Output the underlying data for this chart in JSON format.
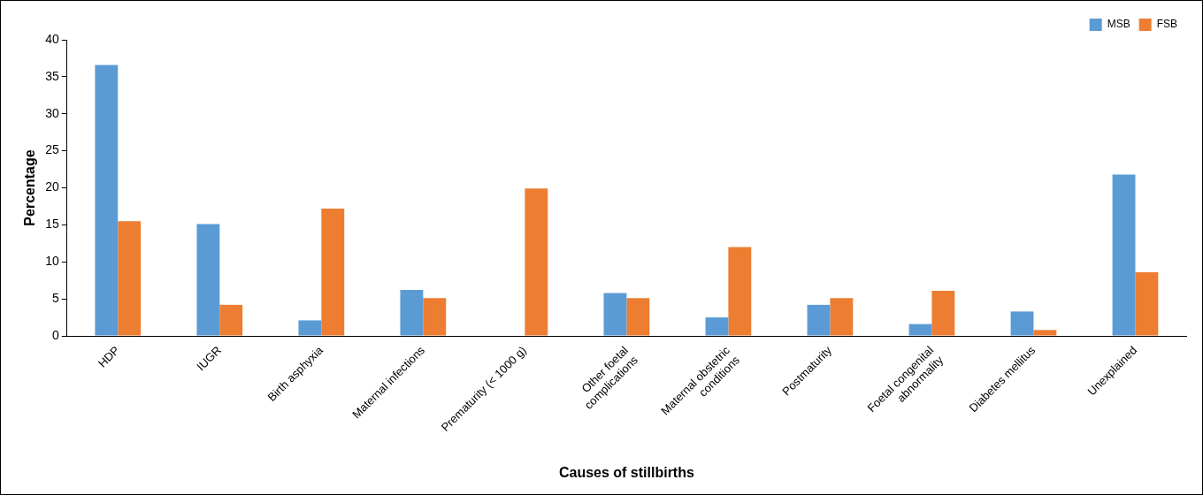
{
  "chart_data": {
    "type": "bar",
    "xlabel": "Causes of stillbirths",
    "ylabel": "Percentage",
    "categories": [
      "HDP",
      "IUGR",
      "Birth asphyxia",
      "Maternal infections",
      "Prematurity (< 1000 g)",
      "Other foetal\ncomplications",
      "Maternal obstetric\nconditions",
      "Postmaturity",
      "Foetal congenital\nabnormality",
      "Diabetes mellitus",
      "Unexplained"
    ],
    "series": [
      {
        "name": "MSB",
        "color": "#5b9bd5",
        "values": [
          36.6,
          15.1,
          2.1,
          6.2,
          0,
          5.8,
          2.5,
          4.2,
          1.6,
          3.3,
          21.8
        ]
      },
      {
        "name": "FSB",
        "color": "#ed7d31",
        "values": [
          15.5,
          4.2,
          17.2,
          5.1,
          19.9,
          5.1,
          12.0,
          5.1,
          6.1,
          0.8,
          8.6
        ]
      }
    ],
    "ylim": [
      0,
      40
    ],
    "yticks": [
      0,
      5,
      10,
      15,
      20,
      25,
      30,
      35,
      40
    ],
    "grid": false,
    "legend": "top right"
  }
}
